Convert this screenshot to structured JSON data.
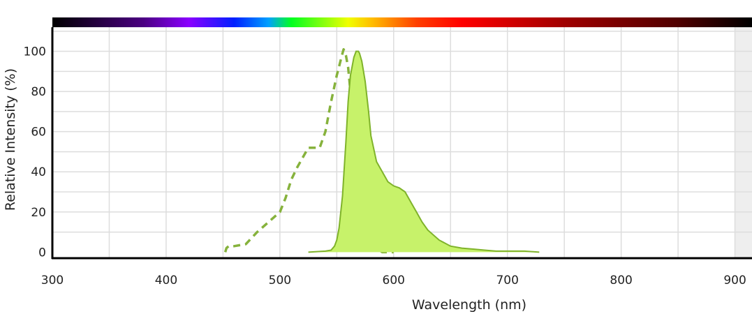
{
  "chart_data": {
    "type": "area",
    "xlabel": "Wavelength (nm)",
    "ylabel": "Relative Intensity (%)",
    "xlim": [
      300,
      915
    ],
    "ylim": [
      -3,
      112
    ],
    "x_ticks": [
      "300",
      "400",
      "500",
      "600",
      "700",
      "800",
      "900"
    ],
    "y_ticks": [
      "0",
      "20",
      "40",
      "60",
      "80",
      "100"
    ],
    "grid": true,
    "colors": {
      "emission_fill": "#c7f26a",
      "emission_line": "#7fb32a",
      "excitation_line": "#86b23c",
      "grid": "#dddddd",
      "axis": "#000000",
      "out_of_range_shade": "#eeeeee"
    },
    "spectrum_bar_stops": [
      {
        "nm": 300,
        "color": "#000000"
      },
      {
        "nm": 380,
        "color": "#4b0082"
      },
      {
        "nm": 420,
        "color": "#8a00ff"
      },
      {
        "nm": 460,
        "color": "#0020ff"
      },
      {
        "nm": 490,
        "color": "#00a0ff"
      },
      {
        "nm": 510,
        "color": "#00ff20"
      },
      {
        "nm": 560,
        "color": "#f0ff00"
      },
      {
        "nm": 580,
        "color": "#ffc000"
      },
      {
        "nm": 620,
        "color": "#ff4000"
      },
      {
        "nm": 660,
        "color": "#ff0000"
      },
      {
        "nm": 750,
        "color": "#a00000"
      },
      {
        "nm": 850,
        "color": "#500000"
      },
      {
        "nm": 915,
        "color": "#000000"
      }
    ],
    "shaded_region": {
      "x_start": 900,
      "x_end": 915
    },
    "series": [
      {
        "style": "dashed",
        "x": [
          452,
          453,
          455,
          460,
          470,
          480,
          490,
          500,
          505,
          510,
          515,
          520,
          525,
          530,
          535,
          540,
          545,
          550,
          555,
          556,
          558,
          560,
          562,
          565,
          568,
          570,
          575,
          580,
          585,
          590,
          600
        ],
        "y": [
          0,
          2,
          3,
          3,
          4,
          10,
          15,
          20,
          27,
          36,
          42,
          47,
          52,
          52,
          52,
          60,
          75,
          88,
          99,
          101,
          98,
          92,
          80,
          60,
          40,
          25,
          15,
          6,
          2,
          0,
          0
        ]
      },
      {
        "style": "solid-fill",
        "x": [
          525,
          540,
          545,
          548,
          550,
          552,
          555,
          558,
          560,
          562,
          565,
          567,
          568,
          569,
          570,
          572,
          575,
          578,
          580,
          585,
          590,
          595,
          600,
          605,
          610,
          615,
          620,
          625,
          630,
          640,
          650,
          660,
          670,
          680,
          690,
          700,
          715,
          728
        ],
        "y": [
          0,
          0.5,
          1,
          3,
          6,
          12,
          28,
          55,
          75,
          88,
          97,
          100,
          100,
          100,
          99,
          95,
          85,
          70,
          58,
          45,
          40,
          35,
          33,
          32,
          30,
          25,
          20,
          15,
          11,
          6,
          3,
          2,
          1.5,
          1,
          0.5,
          0.5,
          0.5,
          0
        ]
      }
    ]
  }
}
